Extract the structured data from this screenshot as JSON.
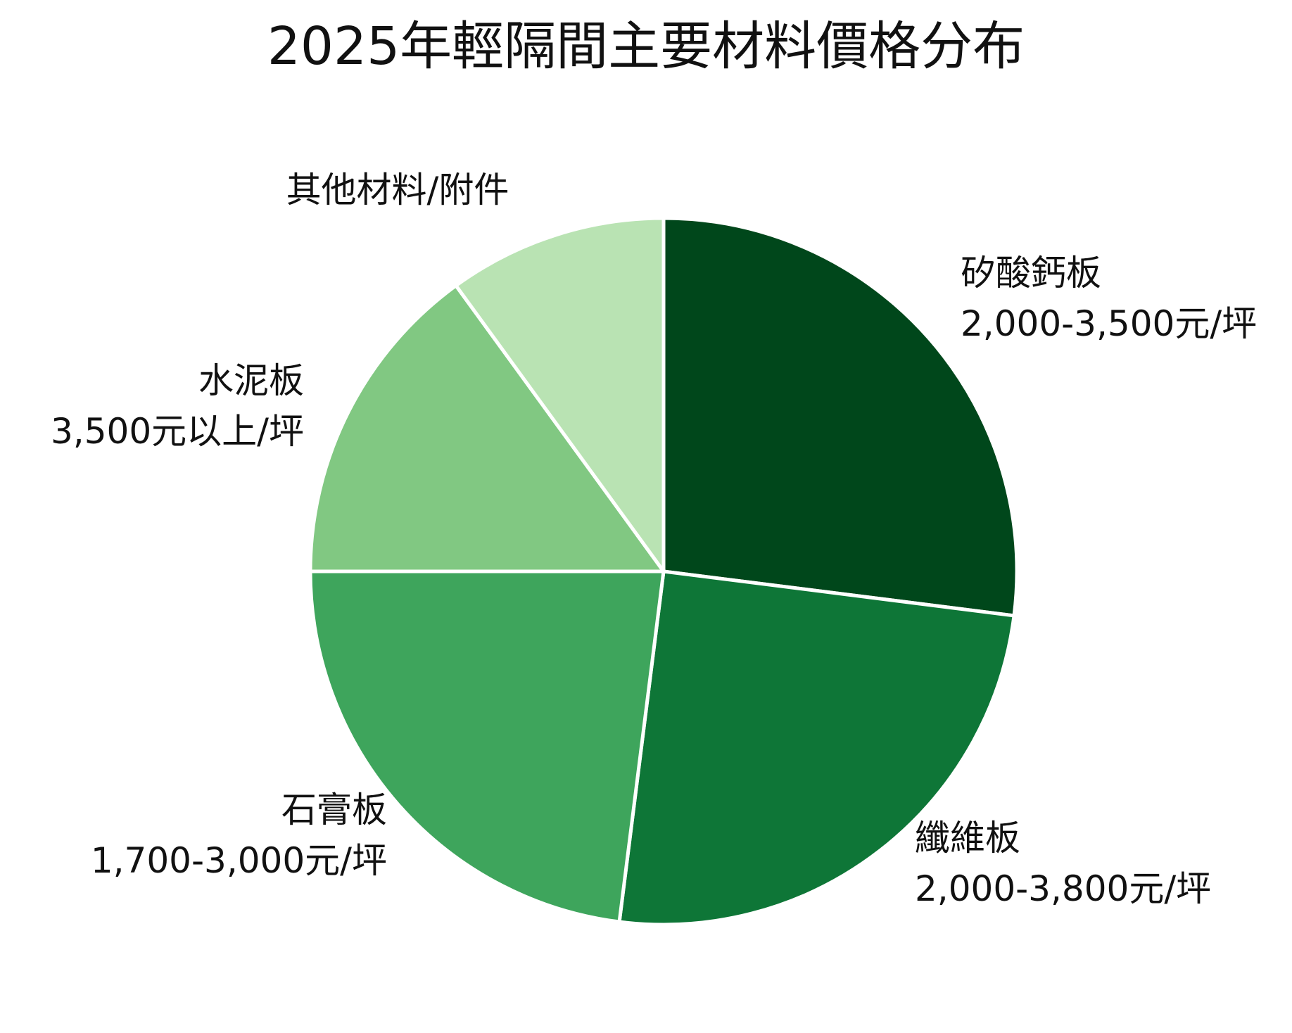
{
  "chart_data": {
    "type": "pie",
    "title": "2025年輕隔間主要材料價格分布",
    "slices": [
      {
        "name": "矽酸鈣板",
        "price": "2,000-3,500元/坪",
        "value": 27,
        "color": "#00471b"
      },
      {
        "name": "纖維板",
        "price": "2,000-3,800元/坪",
        "value": 25,
        "color": "#0e7637"
      },
      {
        "name": "石膏板",
        "price": "1,700-3,000元/坪",
        "value": 23,
        "color": "#3ea55c"
      },
      {
        "name": "水泥板",
        "price": "3,500元以上/坪",
        "value": 15,
        "color": "#81c882"
      },
      {
        "name": "其他材料/附件",
        "price": "",
        "value": 10,
        "color": "#b9e3b3"
      }
    ],
    "start_angle": "12 o'clock",
    "direction": "clockwise",
    "legend": "none",
    "slice_border_color": "#ffffff"
  }
}
